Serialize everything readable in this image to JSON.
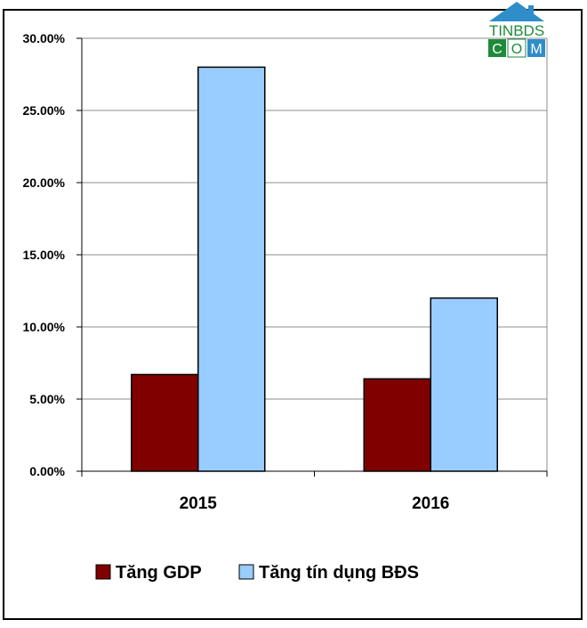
{
  "chart_data": {
    "type": "bar",
    "categories": [
      "2015",
      "2016"
    ],
    "series": [
      {
        "name": "Tăng GDP",
        "values": [
          6.7,
          6.4
        ],
        "color": "#800000"
      },
      {
        "name": "Tăng tín dụng BĐS",
        "values": [
          28.0,
          12.0
        ],
        "color": "#99ccff"
      }
    ],
    "ylim": [
      0,
      30
    ],
    "yticks": [
      "0.00%",
      "5.00%",
      "10.00%",
      "15.00%",
      "20.00%",
      "25.00%",
      "30.00%"
    ],
    "grid": true,
    "legend": "bottom-center",
    "title": "",
    "xlabel": "",
    "ylabel": ""
  },
  "watermark": {
    "top_text": "TINBDS",
    "bottom_left": "C",
    "bottom_mid": "O",
    "bottom_right": "M",
    "house_color": "#2f8dc9",
    "green": "#1e8a3a",
    "blue": "#2f8dc9"
  }
}
